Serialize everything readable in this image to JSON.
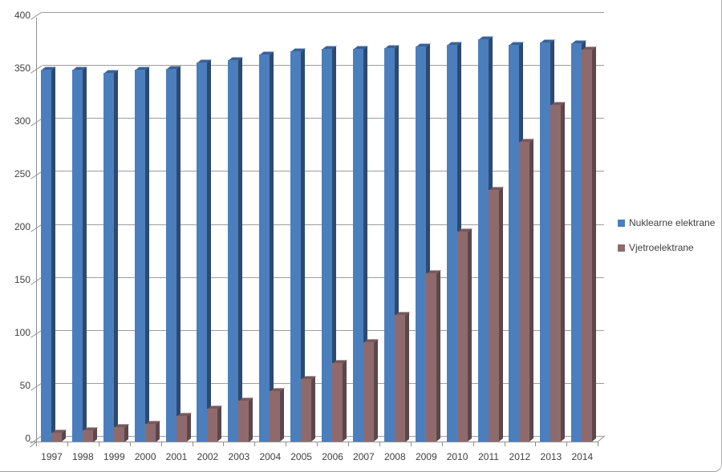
{
  "chart_data": {
    "type": "bar",
    "style": "3d-clustered-column",
    "title": "",
    "categories": [
      "1997",
      "1998",
      "1999",
      "2000",
      "2001",
      "2002",
      "2003",
      "2004",
      "2005",
      "2006",
      "2007",
      "2008",
      "2009",
      "2010",
      "2011",
      "2012",
      "2013",
      "2014"
    ],
    "series": [
      {
        "name": "Nuklearne elektrane",
        "color": "#4B7EBD",
        "side_color": "#2C4A70",
        "top_color": "#3D6095",
        "values": [
          351,
          351,
          348,
          351,
          352,
          358,
          360,
          366,
          369,
          371,
          371,
          372,
          373,
          375,
          380,
          375,
          377,
          376
        ]
      },
      {
        "name": "Vjetroelektrane",
        "color": "#8F6A6D",
        "side_color": "#5C474B",
        "top_color": "#775A5E",
        "values": [
          8,
          11,
          14,
          17,
          24,
          31,
          39,
          48,
          59,
          74,
          94,
          120,
          159,
          198,
          238,
          283,
          318,
          370
        ]
      }
    ],
    "xlabel": "",
    "ylabel": "",
    "ylim": [
      0,
      400
    ],
    "ytick_interval": 50,
    "yticks": [
      "0",
      "50",
      "100",
      "150",
      "200",
      "250",
      "300",
      "350",
      "400"
    ],
    "grid": true,
    "legend_position": "right"
  },
  "colors": {
    "gridline": "#9c9c9c",
    "axis": "#8f8f8f",
    "text": "#3f3f3f",
    "background": "#ffffff"
  }
}
